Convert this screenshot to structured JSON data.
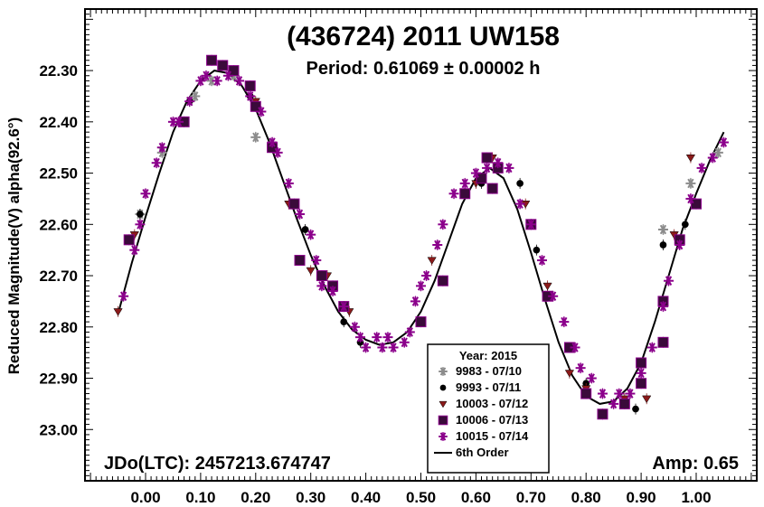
{
  "chart_data": {
    "type": "scatter",
    "title": "(436724) 2011 UW158",
    "subtitle": "Period: 0.61069 ± 0.00002 h",
    "xlabel": "",
    "ylabel": "Reduced Magnitude(V) alpha(92.6°)",
    "xlim": [
      -0.11,
      1.11
    ],
    "ylim": [
      23.1,
      22.18
    ],
    "y_inverted": true,
    "x_ticks": [
      0.0,
      0.1,
      0.2,
      0.3,
      0.4,
      0.5,
      0.6,
      0.7,
      0.8,
      0.9,
      1.0
    ],
    "x_tick_labels": [
      "0.00",
      "0.10",
      "0.20",
      "0.30",
      "0.40",
      "0.50",
      "0.60",
      "0.70",
      "0.80",
      "0.90",
      "1.00"
    ],
    "y_ticks": [
      22.3,
      22.4,
      22.5,
      22.6,
      22.7,
      22.8,
      22.9,
      23.0
    ],
    "y_tick_labels": [
      "22.30",
      "22.40",
      "22.50",
      "22.60",
      "22.70",
      "22.80",
      "22.90",
      "23.00"
    ],
    "grid": false,
    "annotations": {
      "jdo": "JDo(LTC): 2457213.674747",
      "amp": "Amp: 0.65"
    },
    "legend": {
      "title": "Year: 2015",
      "placement": "bottom-center",
      "fit_label": "6th Order"
    },
    "series": [
      {
        "name": "9983 - 07/10",
        "color": "#8c8c8c",
        "marker": "asterisk",
        "points": [
          [
            -0.01,
            22.58
          ],
          [
            0.03,
            22.46
          ],
          [
            0.09,
            22.35
          ],
          [
            0.12,
            22.32
          ],
          [
            0.16,
            22.31
          ],
          [
            0.2,
            22.43
          ],
          [
            0.28,
            22.67
          ],
          [
            0.94,
            22.61
          ],
          [
            0.99,
            22.52
          ],
          [
            1.04,
            22.46
          ]
        ]
      },
      {
        "name": "9993 - 07/11",
        "color": "#000000",
        "marker": "circle",
        "points": [
          [
            -0.01,
            22.58
          ],
          [
            0.08,
            22.36
          ],
          [
            0.19,
            22.35
          ],
          [
            0.29,
            22.61
          ],
          [
            0.36,
            22.79
          ],
          [
            0.39,
            22.83
          ],
          [
            0.61,
            22.52
          ],
          [
            0.68,
            22.52
          ],
          [
            0.71,
            22.65
          ],
          [
            0.8,
            22.91
          ],
          [
            0.89,
            22.96
          ],
          [
            0.94,
            22.64
          ],
          [
            0.98,
            22.6
          ]
        ]
      },
      {
        "name": "10003 - 07/12",
        "color": "#8b1a1a",
        "marker": "triangle",
        "points": [
          [
            -0.05,
            22.77
          ],
          [
            -0.02,
            22.62
          ],
          [
            0.2,
            22.36
          ],
          [
            0.26,
            22.56
          ],
          [
            0.3,
            22.69
          ],
          [
            0.33,
            22.7
          ],
          [
            0.36,
            22.76
          ],
          [
            0.37,
            22.77
          ],
          [
            0.52,
            22.67
          ],
          [
            0.6,
            22.52
          ],
          [
            0.63,
            22.47
          ],
          [
            0.69,
            22.56
          ],
          [
            0.73,
            22.72
          ],
          [
            0.77,
            22.89
          ],
          [
            0.8,
            22.92
          ],
          [
            0.87,
            22.94
          ],
          [
            0.91,
            22.94
          ],
          [
            0.96,
            22.62
          ],
          [
            0.99,
            22.47
          ]
        ]
      },
      {
        "name": "10006 - 07/13",
        "color": "#3a0a3a",
        "marker": "square",
        "points": [
          [
            -0.03,
            22.63
          ],
          [
            0.07,
            22.4
          ],
          [
            0.12,
            22.28
          ],
          [
            0.14,
            22.29
          ],
          [
            0.16,
            22.3
          ],
          [
            0.19,
            22.33
          ],
          [
            0.2,
            22.37
          ],
          [
            0.23,
            22.45
          ],
          [
            0.27,
            22.56
          ],
          [
            0.28,
            22.67
          ],
          [
            0.32,
            22.7
          ],
          [
            0.34,
            22.72
          ],
          [
            0.36,
            22.76
          ],
          [
            0.5,
            22.79
          ],
          [
            0.54,
            22.71
          ],
          [
            0.58,
            22.54
          ],
          [
            0.61,
            22.51
          ],
          [
            0.62,
            22.47
          ],
          [
            0.63,
            22.53
          ],
          [
            0.64,
            22.49
          ],
          [
            0.7,
            22.6
          ],
          [
            0.73,
            22.74
          ],
          [
            0.77,
            22.84
          ],
          [
            0.8,
            22.93
          ],
          [
            0.83,
            22.97
          ],
          [
            0.87,
            22.95
          ],
          [
            0.9,
            22.87
          ],
          [
            0.9,
            22.91
          ],
          [
            0.94,
            22.83
          ],
          [
            0.94,
            22.75
          ],
          [
            0.97,
            22.63
          ],
          [
            1.0,
            22.56
          ]
        ]
      },
      {
        "name": "10015 - 07/14",
        "color": "#8b008b",
        "marker": "asterisk",
        "points": [
          [
            -0.04,
            22.74
          ],
          [
            -0.02,
            22.65
          ],
          [
            -0.01,
            22.6
          ],
          [
            0.0,
            22.54
          ],
          [
            0.02,
            22.48
          ],
          [
            0.03,
            22.45
          ],
          [
            0.05,
            22.4
          ],
          [
            0.06,
            22.4
          ],
          [
            0.08,
            22.36
          ],
          [
            0.1,
            22.32
          ],
          [
            0.11,
            22.31
          ],
          [
            0.13,
            22.32
          ],
          [
            0.15,
            22.31
          ],
          [
            0.17,
            22.32
          ],
          [
            0.19,
            22.35
          ],
          [
            0.21,
            22.38
          ],
          [
            0.23,
            22.44
          ],
          [
            0.24,
            22.46
          ],
          [
            0.26,
            22.52
          ],
          [
            0.28,
            22.58
          ],
          [
            0.3,
            22.62
          ],
          [
            0.31,
            22.67
          ],
          [
            0.32,
            22.72
          ],
          [
            0.34,
            22.73
          ],
          [
            0.36,
            22.76
          ],
          [
            0.38,
            22.8
          ],
          [
            0.39,
            22.82
          ],
          [
            0.4,
            22.84
          ],
          [
            0.42,
            22.82
          ],
          [
            0.43,
            22.84
          ],
          [
            0.44,
            22.82
          ],
          [
            0.45,
            22.84
          ],
          [
            0.47,
            22.83
          ],
          [
            0.48,
            22.81
          ],
          [
            0.49,
            22.75
          ],
          [
            0.5,
            22.72
          ],
          [
            0.51,
            22.7
          ],
          [
            0.53,
            22.64
          ],
          [
            0.54,
            22.6
          ],
          [
            0.56,
            22.54
          ],
          [
            0.58,
            22.52
          ],
          [
            0.6,
            22.5
          ],
          [
            0.62,
            22.49
          ],
          [
            0.64,
            22.48
          ],
          [
            0.66,
            22.49
          ],
          [
            0.68,
            22.56
          ],
          [
            0.7,
            22.6
          ],
          [
            0.72,
            22.67
          ],
          [
            0.74,
            22.74
          ],
          [
            0.76,
            22.79
          ],
          [
            0.78,
            22.84
          ],
          [
            0.79,
            22.88
          ],
          [
            0.81,
            22.9
          ],
          [
            0.83,
            22.93
          ],
          [
            0.85,
            22.95
          ],
          [
            0.86,
            22.93
          ],
          [
            0.88,
            22.93
          ],
          [
            0.9,
            22.89
          ],
          [
            0.92,
            22.84
          ],
          [
            0.94,
            22.76
          ],
          [
            0.95,
            22.71
          ],
          [
            0.97,
            22.64
          ],
          [
            0.99,
            22.55
          ],
          [
            1.01,
            22.49
          ],
          [
            1.03,
            22.47
          ],
          [
            1.05,
            22.44
          ]
        ]
      }
    ],
    "fit_curve": {
      "name": "6th Order",
      "color": "#000000",
      "x": [
        -0.05,
        -0.025,
        0.0,
        0.025,
        0.05,
        0.075,
        0.1,
        0.125,
        0.15,
        0.175,
        0.2,
        0.225,
        0.25,
        0.275,
        0.3,
        0.325,
        0.35,
        0.375,
        0.4,
        0.425,
        0.45,
        0.475,
        0.5,
        0.525,
        0.55,
        0.575,
        0.6,
        0.625,
        0.65,
        0.675,
        0.7,
        0.725,
        0.75,
        0.775,
        0.8,
        0.825,
        0.85,
        0.875,
        0.9,
        0.925,
        0.95,
        0.975,
        1.0,
        1.025,
        1.05
      ],
      "y": [
        22.775,
        22.675,
        22.585,
        22.5,
        22.42,
        22.36,
        22.32,
        22.3,
        22.305,
        22.33,
        22.375,
        22.44,
        22.515,
        22.59,
        22.66,
        22.72,
        22.77,
        22.805,
        22.825,
        22.835,
        22.83,
        22.81,
        22.77,
        22.71,
        22.635,
        22.56,
        22.51,
        22.49,
        22.51,
        22.57,
        22.655,
        22.745,
        22.83,
        22.895,
        22.935,
        22.95,
        22.945,
        22.92,
        22.87,
        22.79,
        22.7,
        22.61,
        22.54,
        22.475,
        22.42
      ]
    }
  }
}
